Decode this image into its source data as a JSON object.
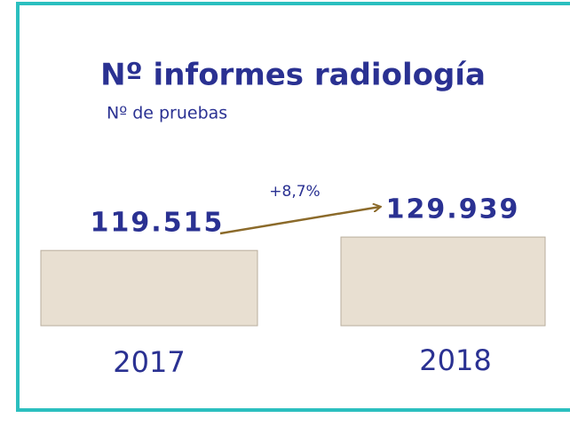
{
  "chart_data": {
    "type": "bar",
    "title": "Nº informes radiología",
    "subtitle": "Nº de pruebas",
    "categories": [
      "2017",
      "2018"
    ],
    "values": [
      119515,
      129939
    ],
    "value_labels": [
      "119.515",
      "129.939"
    ],
    "annotation": "+8,7%",
    "color": "#e8dfd1",
    "ylim": [
      61000,
      130000
    ],
    "grid": false
  }
}
